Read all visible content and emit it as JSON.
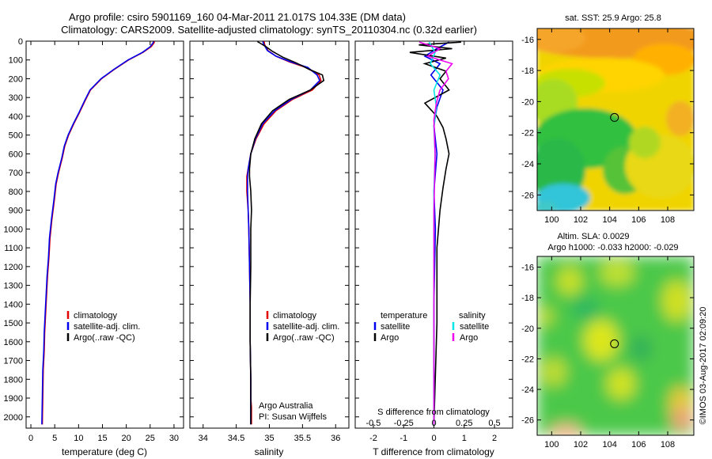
{
  "header": {
    "line1": "Argo profile: csiro 5901169_160 04-Mar-2011 21.017S 104.33E (DM data)",
    "line2": "Climatology: CARS2009. Satellite-adjusted climatology: synTS_20110304.nc (0.32d earlier)"
  },
  "colors": {
    "red": "#e00000",
    "blue": "#0000ee",
    "black": "#000000",
    "cyan": "#00e5e5",
    "magenta": "#ee00ee"
  },
  "chart_data": [
    {
      "type": "line",
      "id": "temperature",
      "xlabel": "temperature (deg C)",
      "ylabel": "",
      "xlim": [
        -1,
        32
      ],
      "ylim": [
        2060,
        0
      ],
      "xticks": [
        "0",
        "5",
        "10",
        "15",
        "20",
        "25",
        "30"
      ],
      "xtick_values": [
        0,
        5,
        10,
        15,
        20,
        25,
        30
      ],
      "yticks": [
        "0",
        "100",
        "200",
        "300",
        "400",
        "500",
        "600",
        "700",
        "800",
        "900",
        "1000",
        "1100",
        "1200",
        "1300",
        "1400",
        "1500",
        "1600",
        "1700",
        "1800",
        "1900",
        "2000"
      ],
      "ytick_values": [
        0,
        100,
        200,
        300,
        400,
        500,
        600,
        700,
        800,
        900,
        1000,
        1100,
        1200,
        1300,
        1400,
        1500,
        1600,
        1700,
        1800,
        1900,
        2000
      ],
      "legend": [
        "climatology",
        "satellite-adj. clim.",
        "Argo(..raw -QC)"
      ],
      "series": [
        {
          "name": "climatology",
          "color": "red",
          "x": [
            25.9,
            25.8,
            25.2,
            23.5,
            20.5,
            17.5,
            14.8,
            12.5,
            11.3,
            10.2,
            9.0,
            7.9,
            7.1,
            6.6,
            6.2,
            5.8,
            5.3,
            4.9,
            4.4,
            4.0,
            3.8,
            3.5,
            3.3,
            3.1,
            2.9,
            2.8,
            2.6,
            2.5,
            2.4
          ],
          "y": [
            2,
            10,
            30,
            60,
            100,
            150,
            200,
            260,
            320,
            380,
            440,
            500,
            560,
            620,
            660,
            700,
            760,
            850,
            950,
            1050,
            1150,
            1250,
            1350,
            1450,
            1550,
            1650,
            1750,
            1900,
            2040
          ]
        },
        {
          "name": "satellite-adj. clim.",
          "color": "blue",
          "x": [
            25.7,
            25.6,
            25.0,
            23.4,
            20.4,
            17.4,
            14.7,
            12.4,
            11.2,
            10.1,
            8.9,
            7.8,
            7.0,
            6.5,
            6.1,
            5.7,
            5.2,
            4.8,
            4.3,
            3.9,
            3.7,
            3.4,
            3.2,
            3.0,
            2.8,
            2.7,
            2.5,
            2.4,
            2.3
          ],
          "y": [
            2,
            10,
            30,
            60,
            100,
            150,
            200,
            260,
            320,
            380,
            440,
            500,
            560,
            620,
            660,
            700,
            760,
            850,
            950,
            1050,
            1150,
            1250,
            1350,
            1450,
            1550,
            1650,
            1750,
            1900,
            2040
          ]
        }
      ]
    },
    {
      "type": "line",
      "id": "salinity",
      "xlabel": "salinity",
      "xlim": [
        33.8,
        36.2
      ],
      "ylim": [
        2060,
        0
      ],
      "xticks": [
        "34",
        "34.5",
        "35",
        "35.5",
        "36"
      ],
      "xtick_values": [
        34,
        34.5,
        35,
        35.5,
        36
      ],
      "legend": [
        "climatology",
        "satellite-adj. clim.",
        "Argo(..raw -QC)"
      ],
      "annotation1": "Argo Australia",
      "annotation2": "PI: Susan Wijffels",
      "series": [
        {
          "name": "climatology",
          "color": "red",
          "x": [
            34.92,
            34.93,
            34.98,
            35.1,
            35.3,
            35.55,
            35.75,
            35.78,
            35.65,
            35.35,
            35.1,
            34.92,
            34.8,
            34.72,
            34.68,
            34.66,
            34.66,
            34.68,
            34.69,
            34.7,
            34.71,
            34.71,
            34.72,
            34.72,
            34.73,
            34.73,
            34.73
          ],
          "y": [
            2,
            20,
            50,
            80,
            110,
            140,
            180,
            210,
            260,
            310,
            370,
            440,
            520,
            600,
            680,
            720,
            800,
            900,
            1000,
            1200,
            1400,
            1600,
            1800,
            1900,
            1950,
            2000,
            2040
          ]
        },
        {
          "name": "satellite-adj. clim.",
          "color": "blue",
          "x": [
            34.9,
            34.92,
            34.97,
            35.1,
            35.32,
            35.58,
            35.72,
            35.76,
            35.62,
            35.33,
            35.08,
            34.9,
            34.79,
            34.72,
            34.68,
            34.67,
            34.67,
            34.68,
            34.69,
            34.7,
            34.71,
            34.71,
            34.72,
            34.72,
            34.72,
            34.72,
            34.72
          ],
          "y": [
            2,
            20,
            50,
            80,
            110,
            140,
            180,
            210,
            260,
            310,
            370,
            440,
            520,
            600,
            680,
            720,
            800,
            900,
            1000,
            1200,
            1400,
            1600,
            1800,
            1900,
            1950,
            2000,
            2040
          ]
        },
        {
          "name": "Argo",
          "color": "black",
          "x": [
            34.82,
            34.95,
            35.05,
            35.2,
            35.4,
            35.6,
            35.8,
            35.82,
            35.62,
            35.3,
            35.05,
            34.88,
            34.78,
            34.72,
            34.7,
            34.7,
            34.72,
            34.73,
            34.72,
            34.72,
            34.71,
            34.71,
            34.72,
            34.72,
            34.72
          ],
          "y": [
            2,
            30,
            55,
            85,
            115,
            150,
            180,
            210,
            260,
            310,
            370,
            440,
            520,
            600,
            680,
            720,
            800,
            900,
            1000,
            1200,
            1400,
            1600,
            1800,
            1950,
            2040
          ]
        }
      ]
    },
    {
      "type": "line",
      "id": "difference",
      "xlabel": "T difference from climatology",
      "xlabel2": "S difference from climatology",
      "xlim": [
        -2.6,
        2.6
      ],
      "ylim": [
        2060,
        0
      ],
      "xticks": [
        "-2",
        "-1",
        "0",
        "1",
        "2"
      ],
      "xtick_values": [
        -2,
        -1,
        0,
        1,
        2
      ],
      "sticks": [
        "-0.5",
        "-0.25",
        "0",
        "0.25",
        "0.5"
      ],
      "stick_values": [
        -0.5,
        -0.25,
        0,
        0.25,
        0.5
      ],
      "legend_temp_title": "temperature",
      "legend_sal_title": "salinity",
      "legend_temp": [
        "satellite",
        "Argo"
      ],
      "legend_sal": [
        "satellite",
        "Argo"
      ],
      "series": [
        {
          "name": "T satellite",
          "color": "blue",
          "x": [
            0.5,
            0.1,
            -0.3,
            0.2,
            -0.1,
            0.3,
            0.1,
            0.0,
            0.1,
            0.0,
            0.05,
            0.0,
            0.0,
            0.0
          ],
          "y": [
            5,
            40,
            80,
            120,
            180,
            260,
            350,
            450,
            600,
            800,
            1000,
            1400,
            1800,
            2040
          ]
        },
        {
          "name": "T Argo",
          "color": "black",
          "x": [
            0.9,
            -0.5,
            0.6,
            -0.8,
            0.4,
            -0.3,
            0.4,
            0.2,
            0.5,
            -0.3,
            0.1,
            0.3,
            0.4,
            0.5,
            0.4,
            0.3,
            0.2,
            0.1,
            0.1,
            0.0
          ],
          "y": [
            5,
            20,
            40,
            60,
            90,
            120,
            160,
            200,
            260,
            330,
            400,
            460,
            520,
            600,
            680,
            780,
            900,
            1100,
            1500,
            2040
          ]
        },
        {
          "name": "S satellite",
          "color": "cyan",
          "x": [
            -0.04,
            0.01,
            -0.03,
            0.05,
            0.0,
            0.02,
            0.0,
            0.01,
            0.0,
            0.0,
            0.0,
            0.0,
            0.0
          ],
          "y": [
            5,
            60,
            120,
            180,
            260,
            350,
            460,
            600,
            800,
            1100,
            1400,
            1800,
            2040
          ]
        },
        {
          "name": "S Argo",
          "color": "magenta",
          "x": [
            -0.12,
            0.05,
            -0.05,
            0.15,
            0.1,
            0.12,
            0.05,
            0.02,
            0.0,
            0.01,
            0.0,
            0.0,
            0.0,
            0.0
          ],
          "y": [
            5,
            40,
            80,
            120,
            160,
            200,
            260,
            330,
            420,
            600,
            900,
            1300,
            1700,
            2040
          ]
        }
      ]
    },
    {
      "type": "heatmap",
      "id": "sst_map",
      "title": "sat. SST: 25.9 Argo: 25.8",
      "xticks": [
        "100",
        "102",
        "104",
        "106",
        "108"
      ],
      "xtick_values": [
        100,
        102,
        104,
        106,
        108
      ],
      "yticks": [
        "-16",
        "-18",
        "-20",
        "-22",
        "-24",
        "-26"
      ],
      "ytick_values": [
        -16,
        -18,
        -20,
        -22,
        -24,
        -26
      ],
      "xlim": [
        99,
        109.8
      ],
      "ylim": [
        -27,
        -15.3
      ],
      "marker": {
        "lon": 104.33,
        "lat": -21.017
      }
    },
    {
      "type": "heatmap",
      "id": "sla_map",
      "title1": "Altim. SLA: 0.0029",
      "title2": "Argo h1000: -0.033 h2000: -0.029",
      "xticks": [
        "100",
        "102",
        "104",
        "106",
        "108"
      ],
      "xtick_values": [
        100,
        102,
        104,
        106,
        108
      ],
      "yticks": [
        "-16",
        "-18",
        "-20",
        "-22",
        "-24",
        "-26"
      ],
      "ytick_values": [
        -16,
        -18,
        -20,
        -22,
        -24,
        -26
      ],
      "xlim": [
        99,
        109.8
      ],
      "ylim": [
        -27,
        -15.3
      ],
      "marker": {
        "lon": 104.33,
        "lat": -21.017
      }
    }
  ],
  "footer": {
    "stamp": "©IMOS 03-Aug-2017 02:09:20"
  }
}
